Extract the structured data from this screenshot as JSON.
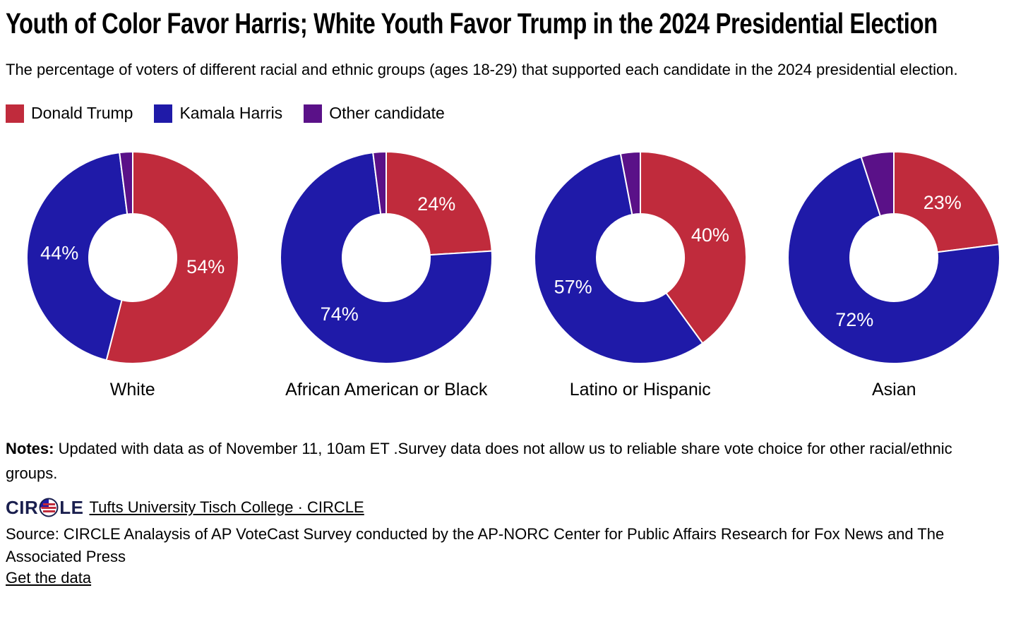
{
  "chart_data": {
    "type": "pie",
    "subtype": "donut",
    "title": "Youth of Color Favor Harris; White Youth Favor Trump in the 2024 Presidential Election",
    "subtitle": "The percentage of voters of different racial and ethnic groups (ages 18-29) that supported each candidate in the 2024 presidential election.",
    "legend_position": "top",
    "legend": [
      {
        "label": "Donald Trump",
        "color": "#c02b3c"
      },
      {
        "label": "Kamala Harris",
        "color": "#1f1aa8"
      },
      {
        "label": "Other candidate",
        "color": "#5a1188"
      }
    ],
    "start_angle_deg": 0,
    "direction": "clockwise",
    "charts": [
      {
        "category": "White",
        "values": [
          54,
          44,
          2
        ],
        "labels": [
          "54%",
          "44%",
          ""
        ]
      },
      {
        "category": "African American or Black",
        "values": [
          24,
          74,
          2
        ],
        "labels": [
          "24%",
          "74%",
          ""
        ]
      },
      {
        "category": "Latino or Hispanic",
        "values": [
          40,
          57,
          3
        ],
        "labels": [
          "40%",
          "57%",
          ""
        ]
      },
      {
        "category": "Asian",
        "values": [
          23,
          72,
          5
        ],
        "labels": [
          "23%",
          "72%",
          ""
        ]
      }
    ]
  },
  "notes": {
    "label": "Notes:",
    "text": "Updated with data as of November 11, 10am ET .Survey data does not allow us to reliable share vote choice for other racial/ethnic groups."
  },
  "branding": {
    "logo_text_left": "CIR",
    "logo_text_right": "LE",
    "link": "Tufts University Tisch College · CIRCLE"
  },
  "source": {
    "text": "Source: CIRCLE Analaysis of AP VoteCast Survey conducted by the AP-NORC Center for Public Affairs Research for Fox News and The Associated Press",
    "link": "Get the data"
  }
}
